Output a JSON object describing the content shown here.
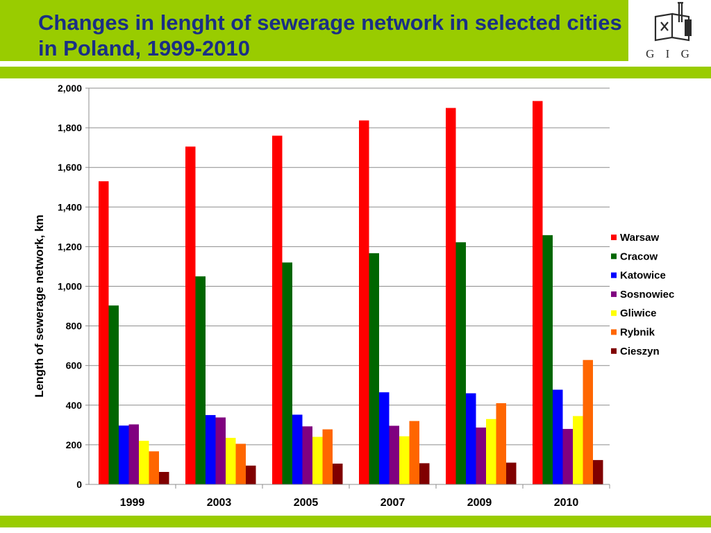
{
  "slide": {
    "title": "Changes in lenght of sewerage network in selected cities in Poland, 1999-2010",
    "logo_text": "G I G",
    "colors": {
      "band": "#99cc00",
      "title": "#1a2f85"
    }
  },
  "chart_data": {
    "type": "bar",
    "title": "",
    "xlabel": "",
    "ylabel": "Length of sewerage network, km",
    "categories": [
      "1999",
      "2003",
      "2005",
      "2007",
      "2009",
      "2010"
    ],
    "ylim": [
      0,
      2000
    ],
    "yticks": [
      "0",
      "200",
      "400",
      "600",
      "800",
      "1,000",
      "1,200",
      "1,400",
      "1,600",
      "1,800",
      "2,000"
    ],
    "grid": true,
    "legend_position": "right",
    "series": [
      {
        "name": "Warsaw",
        "color": "#ff0000",
        "values": [
          1530,
          1705,
          1760,
          1837,
          1900,
          1935
        ]
      },
      {
        "name": "Cracow",
        "color": "#006600",
        "values": [
          903,
          1050,
          1120,
          1167,
          1222,
          1258
        ]
      },
      {
        "name": "Katowice",
        "color": "#0000ff",
        "values": [
          297,
          350,
          352,
          465,
          460,
          478
        ]
      },
      {
        "name": "Sosnowiec",
        "color": "#800080",
        "values": [
          303,
          338,
          293,
          296,
          287,
          280
        ]
      },
      {
        "name": "Gliwice",
        "color": "#ffff00",
        "values": [
          220,
          235,
          240,
          243,
          330,
          345
        ]
      },
      {
        "name": "Rybnik",
        "color": "#ff6600",
        "values": [
          167,
          205,
          278,
          320,
          410,
          628
        ]
      },
      {
        "name": "Cieszyn",
        "color": "#800000",
        "values": [
          63,
          95,
          105,
          107,
          110,
          123
        ]
      }
    ]
  }
}
